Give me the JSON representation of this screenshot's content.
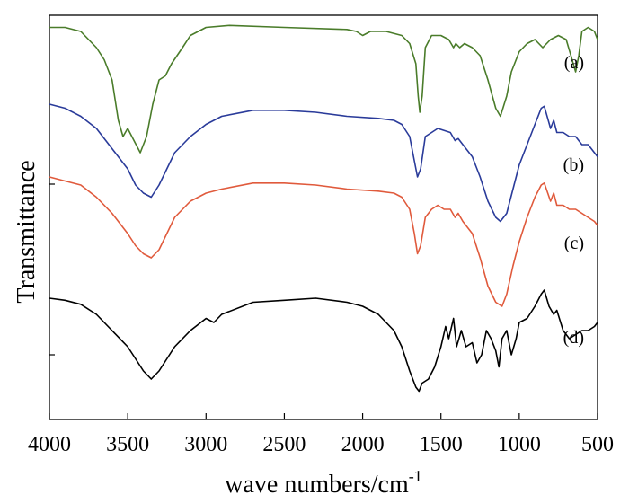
{
  "chart_data": {
    "type": "line",
    "title": "",
    "xlabel": "wave numbers/cm",
    "xlabel_sup": "-1",
    "ylabel": "Transmittance",
    "xlim": [
      4000,
      500
    ],
    "x_inverted": true,
    "x_ticks": [
      4000,
      3500,
      3000,
      2500,
      2000,
      1500,
      1000,
      500
    ],
    "x_tick_labels": [
      "4000",
      "3500",
      "3000",
      "2500",
      "2000",
      "1500",
      "1000",
      "500"
    ],
    "ylim": [
      0,
      100
    ],
    "y_tick_labels_shown": false,
    "grid": false,
    "legend": "labels at right end of each curve",
    "series": [
      {
        "name": "(a)",
        "color": "#4a7c2a",
        "label_position": [
          650,
          76
        ],
        "points": [
          [
            4000,
            97
          ],
          [
            3900,
            97
          ],
          [
            3800,
            96
          ],
          [
            3750,
            94
          ],
          [
            3700,
            92
          ],
          [
            3650,
            89
          ],
          [
            3600,
            84
          ],
          [
            3560,
            74
          ],
          [
            3530,
            70
          ],
          [
            3500,
            72
          ],
          [
            3460,
            69
          ],
          [
            3420,
            66
          ],
          [
            3380,
            70
          ],
          [
            3340,
            78
          ],
          [
            3300,
            84
          ],
          [
            3260,
            85
          ],
          [
            3220,
            88
          ],
          [
            3150,
            92
          ],
          [
            3100,
            95
          ],
          [
            3000,
            97
          ],
          [
            2850,
            97.5
          ],
          [
            2500,
            97
          ],
          [
            2100,
            96.5
          ],
          [
            2040,
            96
          ],
          [
            2000,
            95
          ],
          [
            1950,
            96
          ],
          [
            1850,
            96
          ],
          [
            1750,
            95
          ],
          [
            1700,
            93
          ],
          [
            1660,
            88
          ],
          [
            1645,
            80
          ],
          [
            1635,
            76
          ],
          [
            1620,
            80
          ],
          [
            1600,
            92
          ],
          [
            1560,
            95
          ],
          [
            1500,
            95
          ],
          [
            1450,
            94
          ],
          [
            1420,
            92
          ],
          [
            1405,
            93
          ],
          [
            1380,
            92
          ],
          [
            1350,
            93
          ],
          [
            1300,
            92
          ],
          [
            1250,
            90
          ],
          [
            1200,
            84
          ],
          [
            1150,
            77
          ],
          [
            1120,
            75
          ],
          [
            1080,
            80
          ],
          [
            1050,
            86
          ],
          [
            1000,
            91
          ],
          [
            950,
            93
          ],
          [
            900,
            94
          ],
          [
            850,
            92
          ],
          [
            800,
            94
          ],
          [
            750,
            95
          ],
          [
            700,
            94
          ],
          [
            670,
            90
          ],
          [
            640,
            86
          ],
          [
            620,
            90
          ],
          [
            600,
            96
          ],
          [
            560,
            97
          ],
          [
            520,
            96
          ],
          [
            500,
            94
          ]
        ]
      },
      {
        "name": "(b)",
        "color": "#2a3b9a",
        "label_position": [
          650,
          190
        ],
        "points": [
          [
            4000,
            78
          ],
          [
            3900,
            77
          ],
          [
            3800,
            75
          ],
          [
            3700,
            72
          ],
          [
            3600,
            67
          ],
          [
            3500,
            62
          ],
          [
            3450,
            58
          ],
          [
            3400,
            56
          ],
          [
            3350,
            55
          ],
          [
            3300,
            58
          ],
          [
            3200,
            66
          ],
          [
            3100,
            70
          ],
          [
            3000,
            73
          ],
          [
            2900,
            75
          ],
          [
            2700,
            76.5
          ],
          [
            2500,
            76.5
          ],
          [
            2300,
            76
          ],
          [
            2100,
            75
          ],
          [
            1900,
            74.5
          ],
          [
            1800,
            74
          ],
          [
            1750,
            73
          ],
          [
            1700,
            70
          ],
          [
            1670,
            64
          ],
          [
            1650,
            60
          ],
          [
            1630,
            62
          ],
          [
            1600,
            70
          ],
          [
            1560,
            71
          ],
          [
            1520,
            72
          ],
          [
            1480,
            71.5
          ],
          [
            1440,
            71
          ],
          [
            1410,
            69
          ],
          [
            1390,
            69.5
          ],
          [
            1360,
            68
          ],
          [
            1300,
            65
          ],
          [
            1250,
            60
          ],
          [
            1200,
            54
          ],
          [
            1150,
            50
          ],
          [
            1120,
            49
          ],
          [
            1080,
            51
          ],
          [
            1040,
            57
          ],
          [
            1000,
            63
          ],
          [
            950,
            68
          ],
          [
            900,
            73
          ],
          [
            860,
            77
          ],
          [
            840,
            77.5
          ],
          [
            800,
            72
          ],
          [
            780,
            74
          ],
          [
            760,
            71
          ],
          [
            720,
            71
          ],
          [
            680,
            70
          ],
          [
            640,
            70
          ],
          [
            600,
            68
          ],
          [
            560,
            68
          ],
          [
            520,
            66
          ],
          [
            500,
            65
          ]
        ]
      },
      {
        "name": "(c)",
        "color": "#e05a3c",
        "label_position": [
          650,
          277
        ],
        "points": [
          [
            4000,
            60
          ],
          [
            3900,
            59
          ],
          [
            3800,
            58
          ],
          [
            3700,
            55
          ],
          [
            3600,
            51
          ],
          [
            3500,
            46
          ],
          [
            3450,
            43
          ],
          [
            3400,
            41
          ],
          [
            3350,
            40
          ],
          [
            3300,
            42
          ],
          [
            3200,
            50
          ],
          [
            3100,
            54
          ],
          [
            3000,
            56
          ],
          [
            2900,
            57
          ],
          [
            2700,
            58.5
          ],
          [
            2500,
            58.5
          ],
          [
            2300,
            58
          ],
          [
            2100,
            57
          ],
          [
            1900,
            56.5
          ],
          [
            1800,
            56
          ],
          [
            1750,
            55
          ],
          [
            1700,
            52
          ],
          [
            1670,
            46
          ],
          [
            1650,
            41
          ],
          [
            1630,
            43
          ],
          [
            1600,
            50
          ],
          [
            1560,
            52
          ],
          [
            1520,
            53
          ],
          [
            1480,
            52
          ],
          [
            1440,
            52
          ],
          [
            1410,
            50
          ],
          [
            1390,
            51
          ],
          [
            1360,
            49
          ],
          [
            1300,
            46
          ],
          [
            1250,
            40
          ],
          [
            1200,
            33
          ],
          [
            1150,
            29
          ],
          [
            1110,
            28
          ],
          [
            1080,
            31
          ],
          [
            1040,
            38
          ],
          [
            1000,
            44
          ],
          [
            950,
            50
          ],
          [
            900,
            55
          ],
          [
            860,
            58
          ],
          [
            840,
            58.5
          ],
          [
            800,
            54
          ],
          [
            780,
            56
          ],
          [
            760,
            53
          ],
          [
            720,
            53
          ],
          [
            680,
            52
          ],
          [
            640,
            52
          ],
          [
            600,
            51
          ],
          [
            560,
            50
          ],
          [
            520,
            49
          ],
          [
            500,
            48
          ]
        ]
      },
      {
        "name": "(d)",
        "color": "#000000",
        "label_position": [
          650,
          382
        ],
        "points": [
          [
            4000,
            30
          ],
          [
            3900,
            29.5
          ],
          [
            3800,
            28.5
          ],
          [
            3700,
            26
          ],
          [
            3600,
            22
          ],
          [
            3500,
            18
          ],
          [
            3450,
            15
          ],
          [
            3400,
            12
          ],
          [
            3350,
            10
          ],
          [
            3300,
            12
          ],
          [
            3200,
            18
          ],
          [
            3100,
            22
          ],
          [
            3000,
            25
          ],
          [
            2950,
            24
          ],
          [
            2900,
            26
          ],
          [
            2700,
            29
          ],
          [
            2500,
            29.5
          ],
          [
            2300,
            30
          ],
          [
            2100,
            29
          ],
          [
            2000,
            28
          ],
          [
            1900,
            26
          ],
          [
            1800,
            22
          ],
          [
            1750,
            18
          ],
          [
            1700,
            12
          ],
          [
            1660,
            8
          ],
          [
            1640,
            7
          ],
          [
            1620,
            9
          ],
          [
            1580,
            10
          ],
          [
            1540,
            13
          ],
          [
            1500,
            18
          ],
          [
            1470,
            23
          ],
          [
            1450,
            20
          ],
          [
            1420,
            25
          ],
          [
            1400,
            18
          ],
          [
            1370,
            22
          ],
          [
            1340,
            18
          ],
          [
            1300,
            19
          ],
          [
            1270,
            14
          ],
          [
            1240,
            16
          ],
          [
            1210,
            22
          ],
          [
            1180,
            20
          ],
          [
            1150,
            17
          ],
          [
            1130,
            13
          ],
          [
            1110,
            20
          ],
          [
            1080,
            22
          ],
          [
            1050,
            16
          ],
          [
            1020,
            20
          ],
          [
            1000,
            24
          ],
          [
            950,
            25
          ],
          [
            900,
            28
          ],
          [
            860,
            31
          ],
          [
            840,
            32
          ],
          [
            810,
            28
          ],
          [
            780,
            26
          ],
          [
            760,
            27
          ],
          [
            720,
            22
          ],
          [
            680,
            20
          ],
          [
            640,
            21
          ],
          [
            600,
            22
          ],
          [
            560,
            22
          ],
          [
            520,
            23
          ],
          [
            500,
            24
          ]
        ]
      }
    ]
  }
}
